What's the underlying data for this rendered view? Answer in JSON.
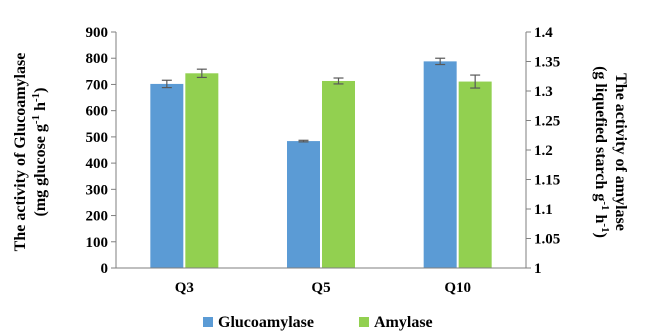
{
  "chart_data": {
    "type": "bar",
    "categories": [
      "Q3",
      "Q5",
      "Q10"
    ],
    "series": [
      {
        "name": "Glucoamylase",
        "axis": "left",
        "color": "#5b9bd5",
        "values": [
          702,
          484,
          788
        ],
        "errors": [
          14,
          3,
          12
        ]
      },
      {
        "name": "Amylase",
        "axis": "right",
        "color": "#92d050",
        "values": [
          1.33,
          1.317,
          1.316
        ],
        "errors": [
          0.007,
          0.005,
          0.011
        ]
      }
    ],
    "ylabel_left": [
      "The activity of Glucoamylase",
      "(mg glucose  g",
      "-1",
      " h",
      "-1",
      ")"
    ],
    "ylabel_right": [
      "The activity of amylase",
      "(g liquefied starch g",
      "-1",
      " h",
      "-1",
      ")"
    ],
    "ylim_left": [
      0,
      900
    ],
    "yticks_left": [
      "0",
      "100",
      "200",
      "300",
      "400",
      "500",
      "600",
      "700",
      "800",
      "900"
    ],
    "ylim_right": [
      1,
      1.4
    ],
    "yticks_right": [
      "1",
      "1.05",
      "1.1",
      "1.15",
      "1.2",
      "1.25",
      "1.3",
      "1.35",
      "1.4"
    ],
    "grid": false,
    "legend_position": "bottom"
  }
}
